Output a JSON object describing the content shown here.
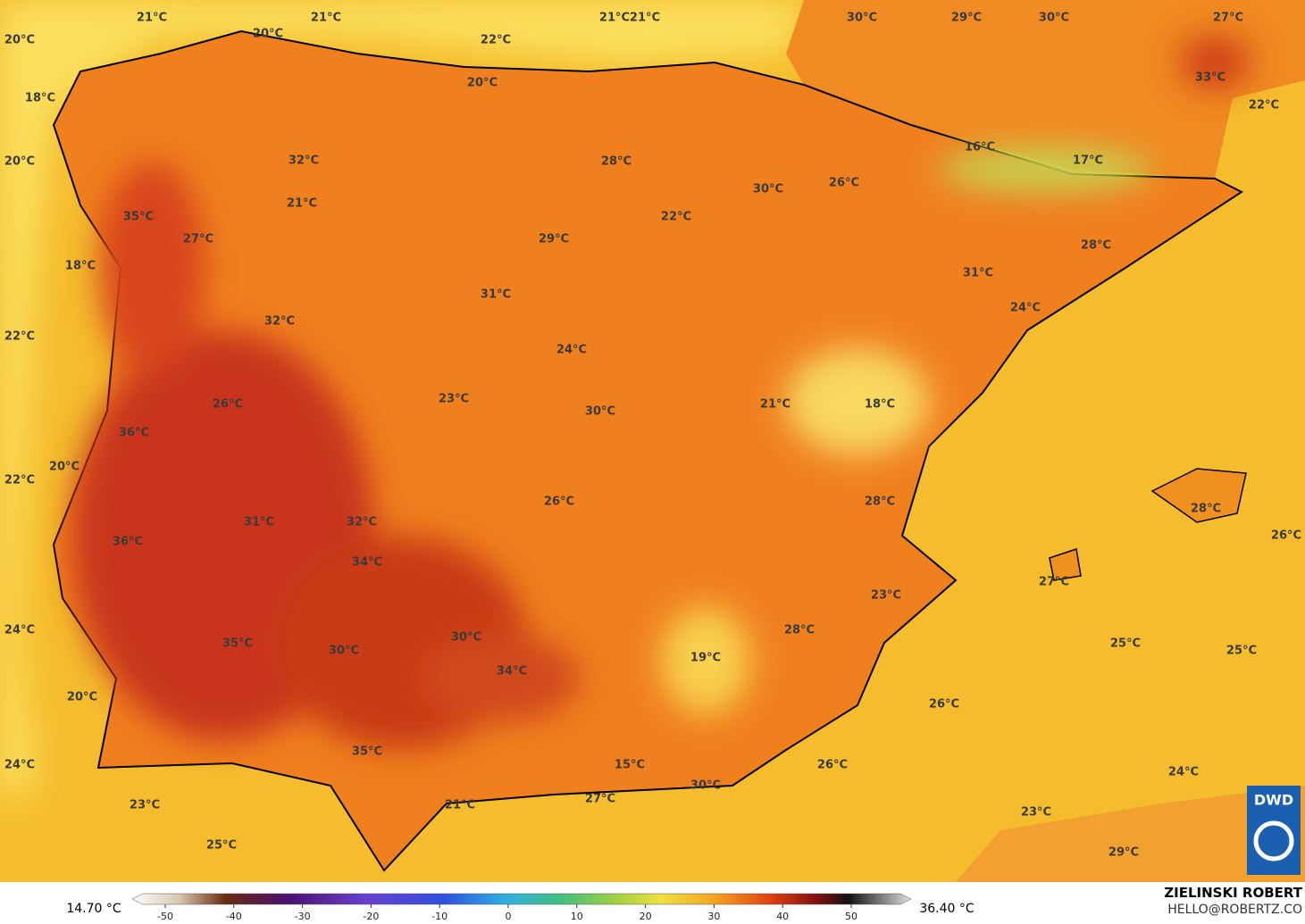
{
  "map_labels": [
    "21°C",
    "21°C",
    "21°C",
    "21°C",
    "30°C",
    "29°C",
    "30°C",
    "27°C",
    "20°C",
    "20°C",
    "22°C",
    "20°C",
    "33°C",
    "18°C",
    "22°C",
    "16°C",
    "17°C",
    "20°C",
    "32°C",
    "28°C",
    "30°C",
    "26°C",
    "21°C",
    "35°C",
    "22°C",
    "27°C",
    "29°C",
    "28°C",
    "18°C",
    "31°C",
    "31°C",
    "24°C",
    "32°C",
    "22°C",
    "24°C",
    "26°C",
    "23°C",
    "21°C",
    "18°C",
    "30°C",
    "36°C",
    "20°C",
    "22°C",
    "28°C",
    "26°C",
    "28°C",
    "31°C",
    "32°C",
    "36°C",
    "26°C",
    "34°C",
    "27°C",
    "23°C",
    "24°C",
    "28°C",
    "30°C",
    "35°C",
    "30°C",
    "25°C",
    "25°C",
    "19°C",
    "34°C",
    "20°C",
    "26°C",
    "35°C",
    "15°C",
    "24°C",
    "26°C",
    "24°C",
    "30°C",
    "27°C",
    "23°C",
    "21°C",
    "23°C",
    "25°C",
    "29°C"
  ],
  "colorbar": {
    "min_label": "14.70 °C",
    "max_label": "36.40 °C",
    "ticks": [
      -50,
      -40,
      -30,
      -20,
      -10,
      0,
      10,
      20,
      30,
      40,
      50
    ]
  },
  "credit": {
    "author": "ZIELINSKI ROBERT",
    "contact": "HELLO@ROBERTZ.CO",
    "logo": "DWD"
  }
}
